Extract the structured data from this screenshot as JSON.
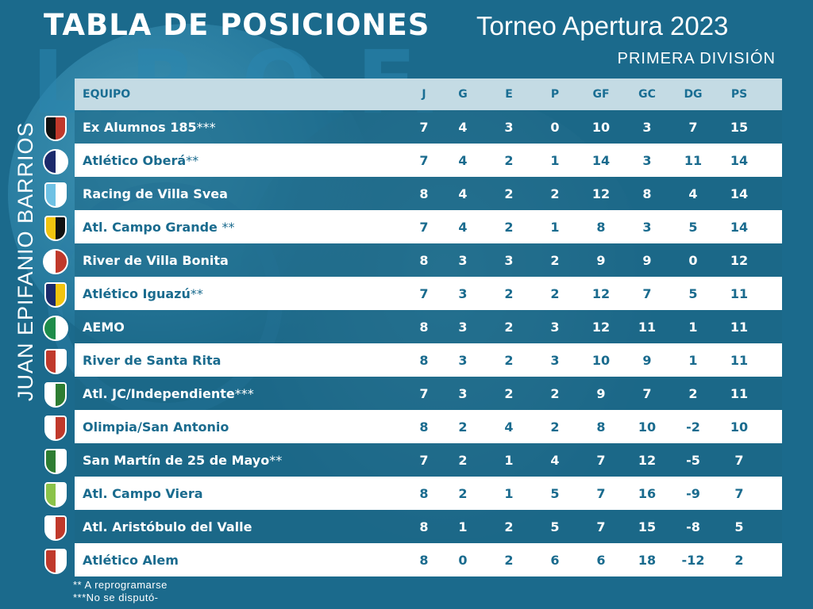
{
  "header": {
    "title": "TABLA DE POSICIONES",
    "tournament": "Torneo Apertura 2023",
    "division": "PRIMERA DIVISIÓN",
    "side_name": "JUAN EPIFANIO BARRIOS",
    "background_text": "L.R.O.F."
  },
  "columns": [
    "EQUIPO",
    "J",
    "G",
    "E",
    "P",
    "GF",
    "GC",
    "DG",
    "PS"
  ],
  "rows": [
    {
      "team": "Ex Alumnos 185",
      "stars": "***",
      "j": "7",
      "g": "4",
      "e": "3",
      "p": "0",
      "gf": "10",
      "gc": "3",
      "dg": "7",
      "ps": "15"
    },
    {
      "team": "Atlético Oberá",
      "stars": "**",
      "j": "7",
      "g": "4",
      "e": "2",
      "p": "1",
      "gf": "14",
      "gc": "3",
      "dg": "11",
      "ps": "14"
    },
    {
      "team": "Racing de Villa Svea",
      "stars": "",
      "j": "8",
      "g": "4",
      "e": "2",
      "p": "2",
      "gf": "12",
      "gc": "8",
      "dg": "4",
      "ps": "14"
    },
    {
      "team": "Atl. Campo Grande ",
      "stars": "**",
      "j": "7",
      "g": "4",
      "e": "2",
      "p": "1",
      "gf": "8",
      "gc": "3",
      "dg": "5",
      "ps": "14"
    },
    {
      "team": "River de Villa Bonita",
      "stars": "",
      "j": "8",
      "g": "3",
      "e": "3",
      "p": "2",
      "gf": "9",
      "gc": "9",
      "dg": "0",
      "ps": "12"
    },
    {
      "team": "Atlético Iguazú",
      "stars": "**",
      "j": "7",
      "g": "3",
      "e": "2",
      "p": "2",
      "gf": "12",
      "gc": "7",
      "dg": "5",
      "ps": "11"
    },
    {
      "team": "AEMO",
      "stars": "",
      "j": "8",
      "g": "3",
      "e": "2",
      "p": "3",
      "gf": "12",
      "gc": "11",
      "dg": "1",
      "ps": "11"
    },
    {
      "team": "River de Santa Rita",
      "stars": "",
      "j": "8",
      "g": "3",
      "e": "2",
      "p": "3",
      "gf": "10",
      "gc": "9",
      "dg": "1",
      "ps": "11"
    },
    {
      "team": "Atl. JC/Independiente",
      "stars": "***",
      "j": "7",
      "g": "3",
      "e": "2",
      "p": "2",
      "gf": "9",
      "gc": "7",
      "dg": "2",
      "ps": "11"
    },
    {
      "team": "Olimpia/San Antonio",
      "stars": "",
      "j": "8",
      "g": "2",
      "e": "4",
      "p": "2",
      "gf": "8",
      "gc": "10",
      "dg": "-2",
      "ps": "10"
    },
    {
      "team": "San Martín de 25 de Mayo",
      "stars": "**",
      "j": "7",
      "g": "2",
      "e": "1",
      "p": "4",
      "gf": "7",
      "gc": "12",
      "dg": "-5",
      "ps": "7"
    },
    {
      "team": "Atl. Campo Viera",
      "stars": "",
      "j": "8",
      "g": "2",
      "e": "1",
      "p": "5",
      "gf": "7",
      "gc": "16",
      "dg": "-9",
      "ps": "7"
    },
    {
      "team": "Atl. Aristóbulo del Valle",
      "stars": "",
      "j": "8",
      "g": "1",
      "e": "2",
      "p": "5",
      "gf": "7",
      "gc": "15",
      "dg": "-8",
      "ps": "5"
    },
    {
      "team": "Atlético Alem",
      "stars": "",
      "j": "8",
      "g": "0",
      "e": "2",
      "p": "6",
      "gf": "6",
      "gc": "18",
      "dg": "-12",
      "ps": "2"
    }
  ],
  "logos": [
    {
      "icon": "exalumnos-crest-icon",
      "shape": "shield",
      "colors": [
        "#111111",
        "#c0392b"
      ]
    },
    {
      "icon": "obera-crest-icon",
      "shape": "circ",
      "colors": [
        "#1c2a6b",
        "#ffffff"
      ]
    },
    {
      "icon": "racing-crest-icon",
      "shape": "shield",
      "colors": [
        "#6ec1e4",
        "#ffffff"
      ]
    },
    {
      "icon": "campogrande-crest-icon",
      "shape": "shield",
      "colors": [
        "#f2c40f",
        "#111111"
      ]
    },
    {
      "icon": "river-villabonita-crest-icon",
      "shape": "circ",
      "colors": [
        "#ffffff",
        "#c0392b"
      ]
    },
    {
      "icon": "iguazu-crest-icon",
      "shape": "shield",
      "colors": [
        "#1c2a6b",
        "#f2c40f"
      ]
    },
    {
      "icon": "aemo-crest-icon",
      "shape": "circ",
      "colors": [
        "#1e8c4a",
        "#ffffff"
      ]
    },
    {
      "icon": "river-santarita-crest-icon",
      "shape": "shield",
      "colors": [
        "#c0392b",
        "#ffffff"
      ]
    },
    {
      "icon": "jc-independiente-crest-icon",
      "shape": "shield",
      "colors": [
        "#ffffff",
        "#2e7d32"
      ]
    },
    {
      "icon": "olimpia-crest-icon",
      "shape": "shield",
      "colors": [
        "#ffffff",
        "#c0392b"
      ]
    },
    {
      "icon": "sanmartin-crest-icon",
      "shape": "shield",
      "colors": [
        "#2e7d32",
        "#ffffff"
      ]
    },
    {
      "icon": "campoviera-crest-icon",
      "shape": "shield",
      "colors": [
        "#8bc34a",
        "#ffffff"
      ]
    },
    {
      "icon": "aristobulo-crest-icon",
      "shape": "shield",
      "colors": [
        "#ffffff",
        "#c0392b"
      ]
    },
    {
      "icon": "alem-crest-icon",
      "shape": "shield",
      "colors": [
        "#c0392b",
        "#ffffff"
      ]
    }
  ],
  "notes": [
    "** A reprogramarse",
    "***No se disputó-"
  ]
}
